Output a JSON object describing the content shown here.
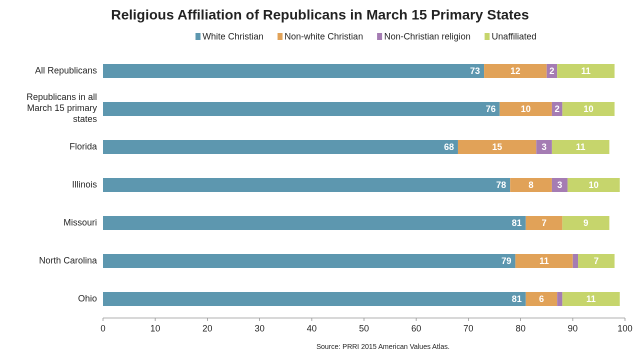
{
  "chart_data": {
    "type": "stacked-bar-horizontal",
    "title": "Religious Affiliation of Republicans in March 15 Primary States",
    "categories": [
      "All Republicans",
      "Republicans in all March 15 primary states",
      "Florida",
      "Illinois",
      "Missouri",
      "North Carolina",
      "Ohio"
    ],
    "series": [
      {
        "name": "White Christian",
        "color": "#5d97af",
        "values": [
          73,
          76,
          68,
          78,
          81,
          79,
          81
        ]
      },
      {
        "name": "Non-white Christian",
        "color": "#e1a258",
        "values": [
          12,
          10,
          15,
          8,
          7,
          11,
          6
        ]
      },
      {
        "name": "Non-Christian religion",
        "color": "#a57cb3",
        "values": [
          2,
          2,
          3,
          3,
          null,
          1,
          1
        ]
      },
      {
        "name": "Unaffiliated",
        "color": "#c6d56c",
        "values": [
          11,
          10,
          11,
          10,
          9,
          7,
          11
        ]
      }
    ],
    "xlim": [
      0,
      100
    ],
    "xticks": [
      0,
      10,
      20,
      30,
      40,
      50,
      60,
      70,
      80,
      90,
      100
    ],
    "source": "Source: PRRI 2015 American Values Atlas."
  }
}
